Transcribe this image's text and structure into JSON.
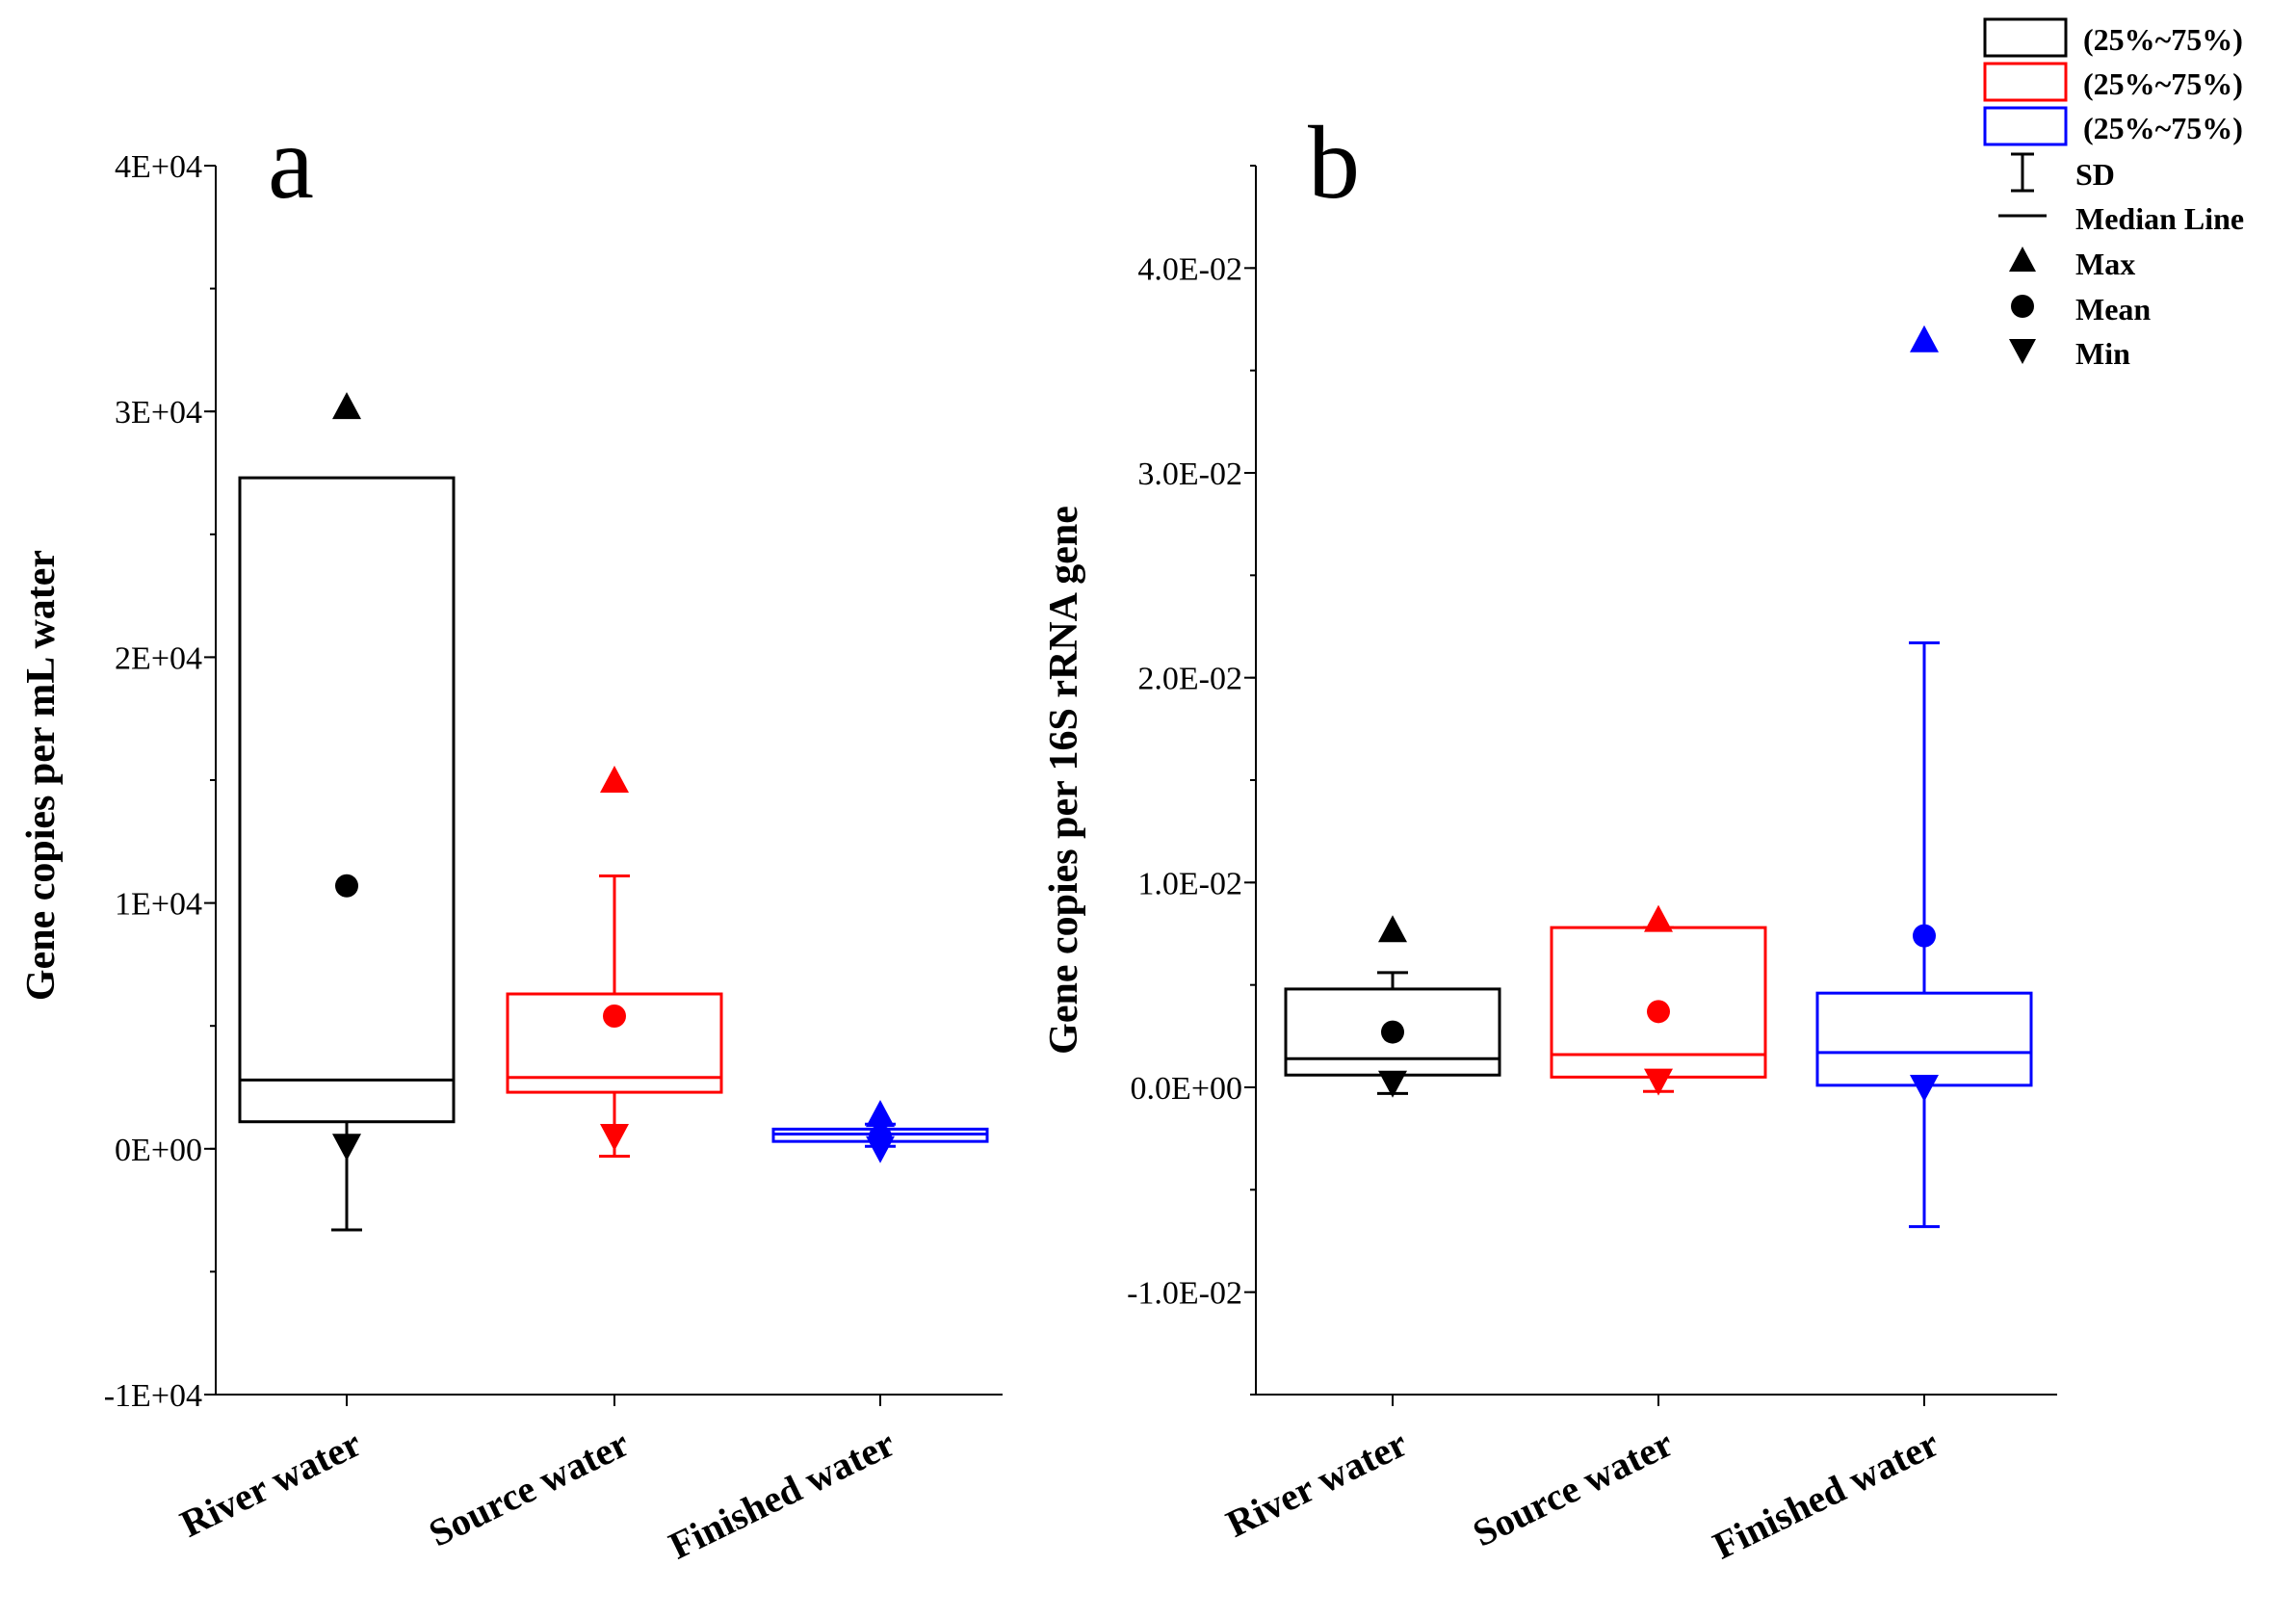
{
  "legend": {
    "box_label_1": "(25%~75%)",
    "box_label_2": "(25%~75%)",
    "box_label_3": "(25%~75%)",
    "sd": "SD",
    "median": "Median Line",
    "max": "Max",
    "mean": "Mean",
    "min": "Min"
  },
  "colors": {
    "river": "#000000",
    "source": "#ff0000",
    "finished": "#0000ff"
  },
  "chart_data": [
    {
      "type": "box",
      "panel_letter": "a",
      "title": "",
      "xlabel": "",
      "ylabel": "Gene copies per mL water",
      "ylim": [
        -10000,
        40000
      ],
      "yticks": [
        -10000,
        0,
        10000,
        20000,
        30000,
        40000
      ],
      "ytick_labels": [
        "-1E+04",
        "0E+00",
        "1E+04",
        "2E+04",
        "3E+04",
        "4E+04"
      ],
      "categories": [
        "River water",
        "Source water",
        "Finished water"
      ],
      "boxes": [
        {
          "category": "River water",
          "color": "#000000",
          "q1": 1100,
          "median": 2800,
          "q3": 27300,
          "mean": 10700,
          "sd_low": -3300,
          "sd_high": 24700,
          "sd_cap": 27200,
          "max": 30200,
          "min": 100
        },
        {
          "category": "Source water",
          "color": "#ff0000",
          "q1": 2300,
          "median": 2900,
          "q3": 6300,
          "mean": 5400,
          "sd_low": -300,
          "sd_high": 11100,
          "max": 15000,
          "min": 500
        },
        {
          "category": "Finished water",
          "color": "#0000ff",
          "q1": 300,
          "median": 600,
          "q3": 800,
          "mean": 500,
          "sd_low": 100,
          "sd_high": 1000,
          "max": 1400,
          "min": 0
        }
      ]
    },
    {
      "type": "box",
      "panel_letter": "b",
      "title": "",
      "xlabel": "",
      "ylabel": "Gene copies per 16S rRNA gene",
      "ylim": [
        -0.015,
        0.045
      ],
      "yticks": [
        -0.01,
        0,
        0.01,
        0.02,
        0.03,
        0.04
      ],
      "ytick_labels": [
        "-1.0E-02",
        "0.0E+00",
        "1.0E-02",
        "2.0E-02",
        "3.0E-02",
        "4.0E-02"
      ],
      "categories": [
        "River water",
        "Source water",
        "Finished water"
      ],
      "boxes": [
        {
          "category": "River water",
          "color": "#000000",
          "q1": 0.0006,
          "median": 0.0014,
          "q3": 0.0048,
          "mean": 0.0027,
          "sd_low": -0.0003,
          "sd_high": 0.0056,
          "max": 0.0077,
          "min": 0.0002
        },
        {
          "category": "Source water",
          "color": "#ff0000",
          "q1": 0.0005,
          "median": 0.0016,
          "q3": 0.0078,
          "mean": 0.0037,
          "sd_low": -0.0002,
          "sd_high": 0.0078,
          "max": 0.0082,
          "min": 0.0003
        },
        {
          "category": "Finished water",
          "color": "#0000ff",
          "q1": 0.0001,
          "median": 0.0017,
          "q3": 0.0046,
          "mean": 0.0074,
          "sd_low": -0.0068,
          "sd_high": 0.0217,
          "max": 0.0365,
          "min": 0.0
        }
      ]
    }
  ]
}
